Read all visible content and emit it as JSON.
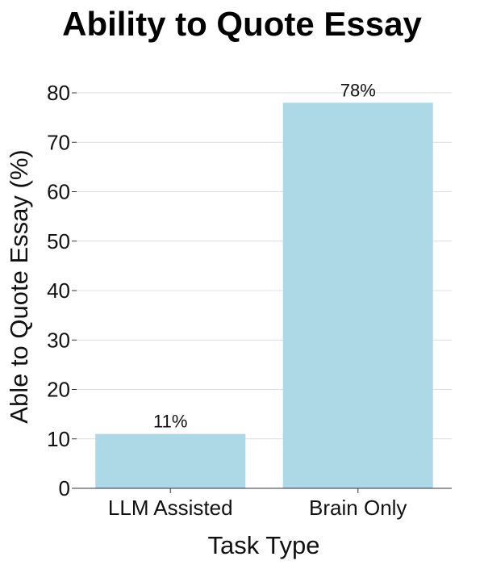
{
  "chart_data": {
    "type": "bar",
    "title": "Ability to Quote Essay",
    "xlabel": "Task Type",
    "ylabel": "Able to Quote Essay (%)",
    "categories": [
      "LLM Assisted",
      "Brain Only"
    ],
    "values": [
      11,
      78
    ],
    "value_labels": [
      "11%",
      "78%"
    ],
    "ylim": [
      0,
      80
    ],
    "yticks": [
      0,
      10,
      20,
      30,
      40,
      50,
      60,
      70,
      80
    ],
    "grid": true,
    "bar_color": "#add8e6"
  }
}
